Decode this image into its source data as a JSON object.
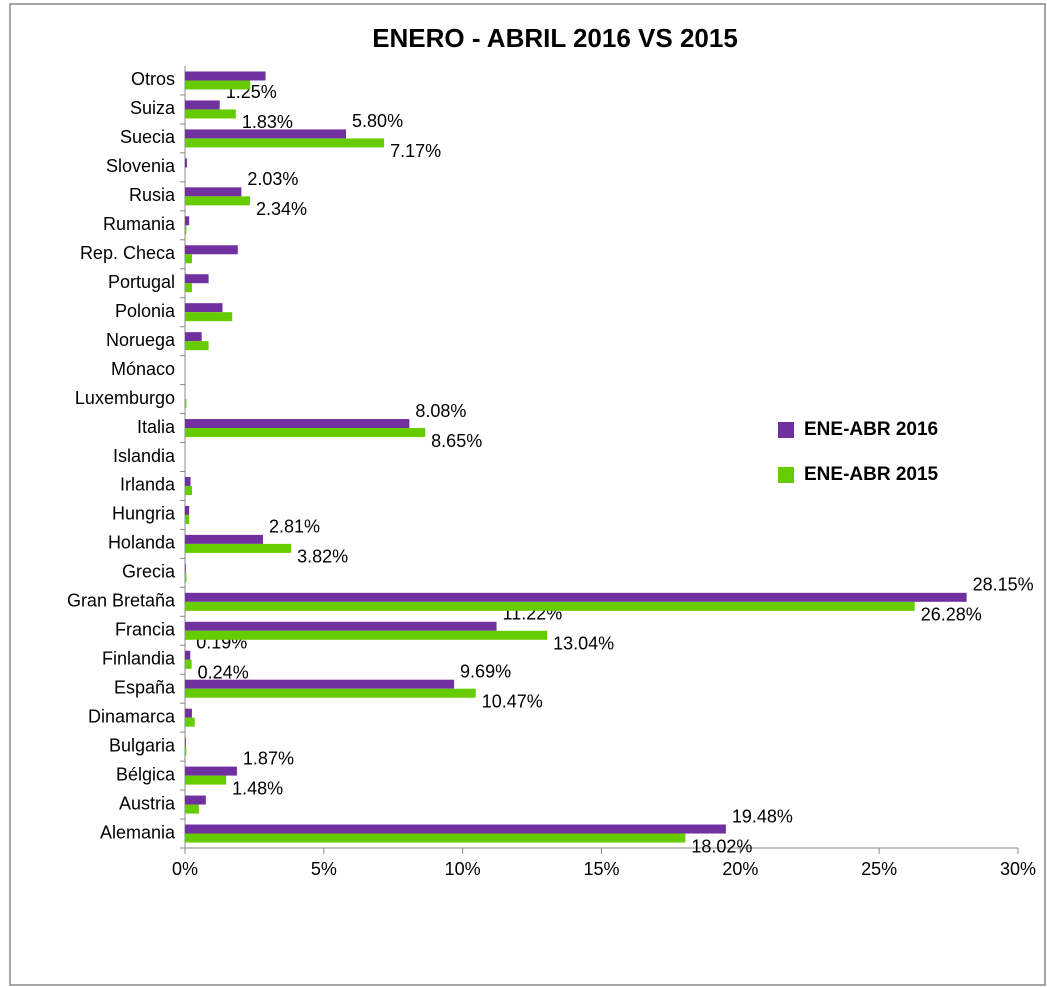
{
  "chart_data": {
    "type": "bar",
    "orientation": "horizontal",
    "title": "ENERO - ABRIL  2016 VS 2015",
    "categories": [
      "Alemania",
      "Austria",
      "Bélgica",
      "Bulgaria",
      "Dinamarca",
      "España",
      "Finlandia",
      "Francia",
      "Gran Bretaña",
      "Grecia",
      "Holanda",
      "Hungria",
      "Irlanda",
      "Islandia",
      "Italia",
      "Luxemburgo",
      "Mónaco",
      "Noruega",
      "Polonia",
      "Portugal",
      "Rep. Checa",
      "Rumania",
      "Rusia",
      "Slovenia",
      "Suecia",
      "Suiza",
      "Otros"
    ],
    "series": [
      {
        "name": "ENE-ABR  2016",
        "color": "#7030a0",
        "values": [
          19.48,
          0.75,
          1.87,
          0.03,
          0.25,
          9.69,
          0.19,
          11.22,
          28.15,
          0.03,
          2.81,
          0.15,
          0.2,
          0,
          8.08,
          0,
          0,
          0.6,
          1.35,
          0.85,
          1.9,
          0.15,
          2.03,
          0.07,
          5.8,
          1.25,
          2.9
        ],
        "value_labels": [
          "19.48%",
          null,
          "1.87%",
          null,
          null,
          "9.69%",
          "0.19%",
          "11.22%",
          "28.15%",
          null,
          "2.81%",
          null,
          null,
          null,
          "8.08%",
          null,
          null,
          null,
          null,
          null,
          null,
          null,
          "2.03%",
          null,
          "5.80%",
          "1.25%",
          null
        ]
      },
      {
        "name": "ENE-ABR  2015",
        "color": "#66cc00",
        "values": [
          18.02,
          0.5,
          1.48,
          0.05,
          0.35,
          10.47,
          0.24,
          13.04,
          26.28,
          0.05,
          3.82,
          0.15,
          0.25,
          0,
          8.65,
          0.05,
          0,
          0.85,
          1.7,
          0.25,
          0.25,
          0.05,
          2.34,
          0,
          7.17,
          1.83,
          2.35
        ],
        "value_labels": [
          "18.02%",
          null,
          "1.48%",
          null,
          null,
          "10.47%",
          "0.24%",
          "13.04%",
          "26.28%",
          null,
          "3.82%",
          null,
          null,
          null,
          "8.65%",
          null,
          null,
          null,
          null,
          null,
          null,
          null,
          "2.34%",
          null,
          "7.17%",
          "1.83%",
          null
        ]
      }
    ],
    "xlim": [
      0,
      30
    ],
    "xticks": [
      {
        "value": 0,
        "label": "0%"
      },
      {
        "value": 5,
        "label": "5%"
      },
      {
        "value": 10,
        "label": "10%"
      },
      {
        "value": 15,
        "label": "15%"
      },
      {
        "value": 20,
        "label": "20%"
      },
      {
        "value": 25,
        "label": "25%"
      },
      {
        "value": 30,
        "label": "30%"
      }
    ],
    "legend": "right"
  }
}
